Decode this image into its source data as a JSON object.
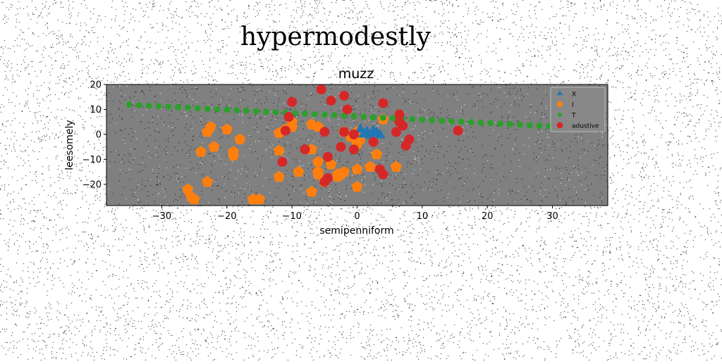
{
  "figure": {
    "suptitle": "hypermodestly"
  },
  "chart_data": {
    "type": "scatter",
    "title": "muzz",
    "xlabel": "semipenniform",
    "ylabel": "leesomely",
    "xlim": [
      -38.5,
      38.5
    ],
    "ylim": [
      -28.5,
      20
    ],
    "xticks": [
      -30,
      -20,
      -10,
      0,
      10,
      20,
      30
    ],
    "yticks": [
      -20,
      -10,
      0,
      10,
      20
    ],
    "grid": false,
    "plot_background": "#808080",
    "legend_position": "upper-right",
    "series": [
      {
        "name": "X",
        "marker": "triangle",
        "color": "#1f77b4",
        "points": [
          [
            0.5,
            2
          ],
          [
            1.5,
            1
          ],
          [
            2.5,
            1.5
          ],
          [
            3,
            0.5
          ],
          [
            1,
            0
          ],
          [
            2,
            -0.5
          ],
          [
            3.5,
            -0.3
          ]
        ]
      },
      {
        "name": "I",
        "marker": "pentagon",
        "color": "#ff7f0e",
        "points": [
          [
            -26,
            -22
          ],
          [
            -25.5,
            -25
          ],
          [
            -25,
            -26
          ],
          [
            -23,
            -19
          ],
          [
            -24,
            -7
          ],
          [
            -23,
            1
          ],
          [
            -22.5,
            3
          ],
          [
            -22,
            -5
          ],
          [
            -20,
            2
          ],
          [
            -19,
            -8.5
          ],
          [
            -19,
            -7
          ],
          [
            -18,
            -2
          ],
          [
            -16,
            -26
          ],
          [
            -15,
            -26
          ],
          [
            -12,
            -17
          ],
          [
            -12,
            -6.5
          ],
          [
            -12,
            0.5
          ],
          [
            -11,
            2
          ],
          [
            -10,
            5
          ],
          [
            -10,
            3
          ],
          [
            -9,
            -15
          ],
          [
            -7,
            -23
          ],
          [
            -7,
            -6
          ],
          [
            -7,
            4
          ],
          [
            -6,
            3
          ],
          [
            -6,
            -11
          ],
          [
            -6,
            -15
          ],
          [
            -6,
            -16
          ],
          [
            -5,
            -19
          ],
          [
            -4,
            -12
          ],
          [
            -3,
            -16
          ],
          [
            -3,
            -17
          ],
          [
            -2.5,
            -16
          ],
          [
            -2,
            -15
          ],
          [
            -2,
            1
          ],
          [
            -1,
            -1
          ],
          [
            0,
            -21
          ],
          [
            0,
            -14
          ],
          [
            0,
            -4
          ],
          [
            0,
            1
          ],
          [
            0.5,
            -2
          ],
          [
            2,
            -13
          ],
          [
            3,
            -8
          ],
          [
            4,
            6
          ],
          [
            6,
            -13
          ]
        ]
      },
      {
        "name": "T",
        "marker": "circle",
        "color": "#2ca02c",
        "points": [
          [
            -35,
            11.9
          ],
          [
            -33.5,
            11.7
          ],
          [
            -32,
            11.5
          ],
          [
            -30.5,
            11.3
          ],
          [
            -29,
            11.1
          ],
          [
            -27.5,
            10.9
          ],
          [
            -26,
            10.7
          ],
          [
            -24.5,
            10.5
          ],
          [
            -23,
            10.3
          ],
          [
            -21.5,
            10.1
          ],
          [
            -20,
            9.9
          ],
          [
            -18.5,
            9.7
          ],
          [
            -17,
            9.5
          ],
          [
            -15.5,
            9.3
          ],
          [
            -14,
            9.1
          ],
          [
            -12.5,
            8.9
          ],
          [
            -11,
            8.7
          ],
          [
            -9.5,
            8.5
          ],
          [
            -8,
            8.3
          ],
          [
            -6.5,
            8.1
          ],
          [
            -5,
            7.9
          ],
          [
            -3.5,
            7.7
          ],
          [
            -2,
            7.5
          ],
          [
            -0.5,
            7.3
          ],
          [
            1,
            7.1
          ],
          [
            2.5,
            6.9
          ],
          [
            4,
            6.7
          ],
          [
            5.5,
            6.5
          ],
          [
            7,
            6.3
          ],
          [
            8.5,
            6.1
          ],
          [
            10,
            5.9
          ],
          [
            11.5,
            5.7
          ],
          [
            13,
            5.5
          ],
          [
            14.5,
            5.3
          ],
          [
            16,
            5.1
          ],
          [
            17.5,
            4.9
          ],
          [
            19,
            4.7
          ],
          [
            20.5,
            4.5
          ],
          [
            22,
            4.3
          ],
          [
            23.5,
            4.1
          ],
          [
            25,
            3.9
          ],
          [
            26.5,
            3.7
          ],
          [
            28,
            3.5
          ],
          [
            29.5,
            3.3
          ],
          [
            31,
            3.1
          ],
          [
            32.5,
            2.9
          ],
          [
            34,
            2.7
          ],
          [
            35.5,
            2.5
          ]
        ]
      },
      {
        "name": "adustive",
        "marker": "circle",
        "color": "#d62728",
        "points": [
          [
            -5.5,
            18
          ],
          [
            -4,
            13.5
          ],
          [
            -2,
            15.5
          ],
          [
            -1.5,
            10
          ],
          [
            -10,
            13
          ],
          [
            -10.5,
            7
          ],
          [
            -11,
            1.5
          ],
          [
            -11.5,
            -11
          ],
          [
            -8,
            -6
          ],
          [
            -4.5,
            -9
          ],
          [
            -5,
            -19
          ],
          [
            -4.5,
            -17.5
          ],
          [
            -5,
            1
          ],
          [
            -2,
            1
          ],
          [
            -2.5,
            -5
          ],
          [
            -0.5,
            0
          ],
          [
            -0.5,
            -6
          ],
          [
            2.5,
            -3
          ],
          [
            3.5,
            -14
          ],
          [
            4,
            12.5
          ],
          [
            4,
            -16
          ],
          [
            6,
            1
          ],
          [
            6.5,
            8
          ],
          [
            6.5,
            5
          ],
          [
            7,
            3.5
          ],
          [
            7.5,
            -4.5
          ],
          [
            8,
            -2
          ],
          [
            15.5,
            1.5
          ]
        ]
      }
    ]
  }
}
